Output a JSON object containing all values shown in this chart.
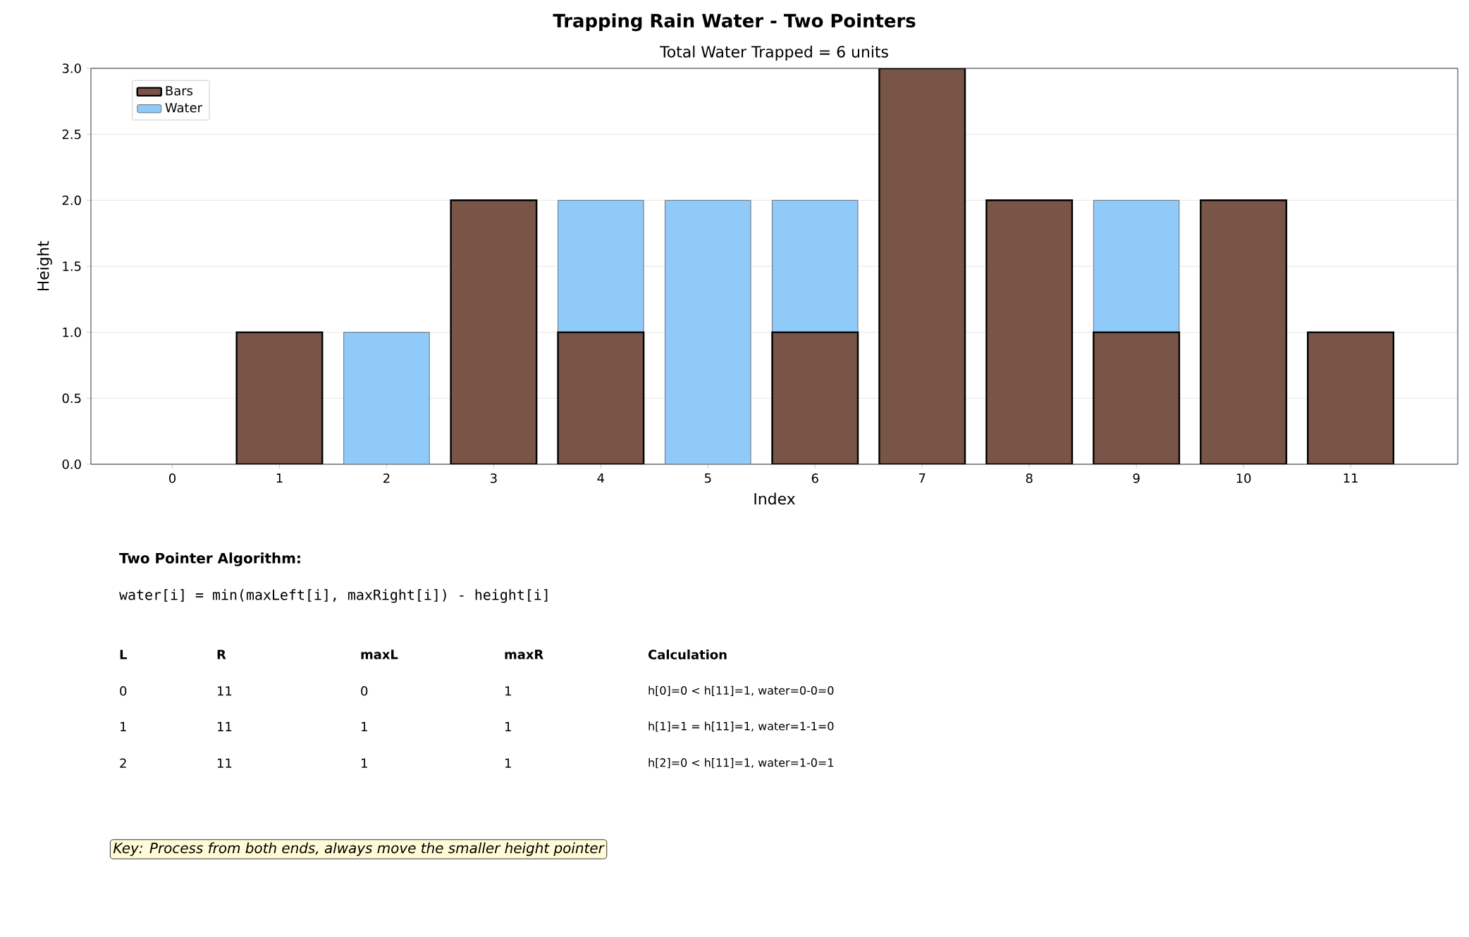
{
  "chart_data": {
    "type": "bar",
    "stacked": true,
    "title": "Trapping Rain Water - Two Pointers",
    "subtitle": "Total Water Trapped = 6 units",
    "xlabel": "Index",
    "ylabel": "Height",
    "categories": [
      "0",
      "1",
      "2",
      "3",
      "4",
      "5",
      "6",
      "7",
      "8",
      "9",
      "10",
      "11"
    ],
    "series": [
      {
        "name": "Bars",
        "color": "#795548",
        "values": [
          0,
          1,
          0,
          2,
          1,
          0,
          1,
          3,
          2,
          1,
          2,
          1
        ]
      },
      {
        "name": "Water",
        "color": "#90caf9",
        "values": [
          0,
          0,
          1,
          0,
          1,
          2,
          1,
          0,
          0,
          1,
          0,
          0
        ]
      }
    ],
    "ylim": [
      0,
      3
    ],
    "yticks": [
      {
        "value": 0,
        "label": "0.0"
      },
      {
        "value": 0.5,
        "label": "0.5"
      },
      {
        "value": 1,
        "label": "1.0"
      },
      {
        "value": 1.5,
        "label": "1.5"
      },
      {
        "value": 2,
        "label": "2.0"
      },
      {
        "value": 2.5,
        "label": "2.5"
      },
      {
        "value": 3,
        "label": "3.0"
      }
    ],
    "grid": "y",
    "legend": "top left",
    "annotations": [
      "Two Pointer Algorithm:",
      "water[i] = min(maxLeft[i], maxRight[i]) - height[i]",
      "L",
      "R",
      "maxL",
      "maxR",
      "Calculation",
      "0",
      "11",
      "0",
      "1",
      "h[0]=0 < h[11]=1, water=0-0=0",
      "1",
      "11",
      "1",
      "1",
      "h[1]=1 = h[11]=1, water=1-1=0",
      "2",
      "11",
      "1",
      "1",
      "h[2]=0 < h[11]=1, water=1-0=1",
      "Key: Process from both ends, always move the smaller height pointer"
    ]
  }
}
